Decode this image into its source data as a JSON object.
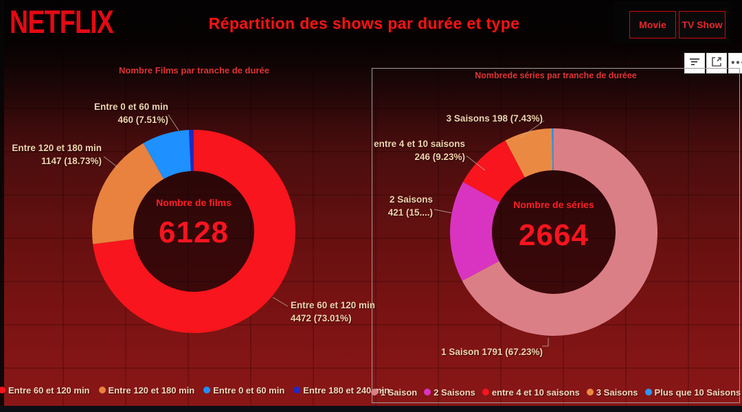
{
  "header": {
    "logo": "NETFLIX",
    "title": "Répartition des shows par durée et type",
    "filter_buttons": [
      {
        "label": "Movie"
      },
      {
        "label": "TV Show"
      }
    ]
  },
  "toolbar": {
    "icons": [
      {
        "name": "filter-icon"
      },
      {
        "name": "focus-mode-icon"
      },
      {
        "name": "more-options-icon"
      }
    ]
  },
  "colors": {
    "netflix_red": "#e50914",
    "title_red": "#f61414",
    "label_cream": "#f0d3ae",
    "center_red": "#f8141f"
  },
  "chart_data": [
    {
      "type": "pie",
      "title": "Nombre Films par tranche de durée",
      "center_label": "Nombre de films",
      "center_value": "6128",
      "total": 6128,
      "legend_position": "bottom",
      "slices": [
        {
          "label": "Entre 60 et 120 min",
          "value": 4472,
          "pct": 73.01,
          "color": "#f8151d"
        },
        {
          "label": "Entre 120 et 180 min",
          "value": 1147,
          "pct": 18.73,
          "color": "#e8823e"
        },
        {
          "label": "Entre 0 et 60 min",
          "value": 460,
          "pct": 7.51,
          "color": "#1e90ff"
        },
        {
          "label": "Entre 180 et 240 min",
          "pct": 0.75,
          "color": "#2128c4"
        }
      ],
      "callouts": [
        {
          "lines": [
            "Entre 0 et 60 min",
            "460 (7.51%)"
          ]
        },
        {
          "lines": [
            "Entre 120 et 180 min",
            "1147 (18.73%)"
          ]
        },
        {
          "lines": [
            "Entre 60 et 120 min",
            "4472 (73.01%)"
          ]
        }
      ]
    },
    {
      "type": "pie",
      "title": "Nombrede séries par tranche de duréee",
      "center_label": "Nombre de séries",
      "center_value": "2664",
      "total": 2664,
      "legend_position": "bottom",
      "slices": [
        {
          "label": "1 Saison",
          "value": 1791,
          "pct": 67.23,
          "color": "#db7f86"
        },
        {
          "label": "2 Saisons",
          "value": 421,
          "pct": 15.8,
          "color": "#d934c1"
        },
        {
          "label": "entre 4 et 10 saisons",
          "value": 246,
          "pct": 9.23,
          "color": "#f8151d"
        },
        {
          "label": "3 Saisons",
          "value": 198,
          "pct": 7.43,
          "color": "#ea8a42"
        },
        {
          "label": "Plus que 10 Saisons",
          "pct": 0.31,
          "color": "#2d96f3"
        }
      ],
      "callouts": [
        {
          "lines": [
            "3 Saisons 198 (7.43%)"
          ]
        },
        {
          "lines": [
            "entre 4 et 10 saisons",
            "246 (9.23%)"
          ]
        },
        {
          "lines": [
            "2 Saisons",
            "421 (15....)"
          ]
        },
        {
          "lines": [
            "1 Saison 1791 (67.23%)"
          ]
        }
      ]
    }
  ]
}
